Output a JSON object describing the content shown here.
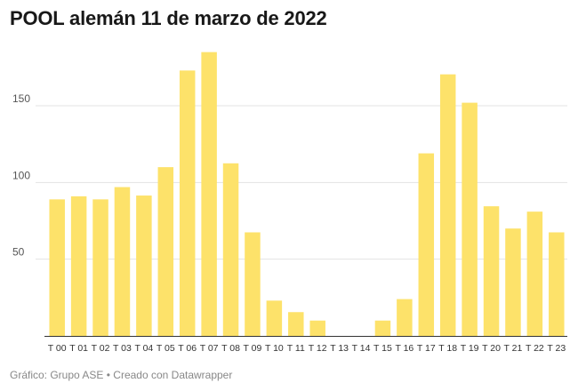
{
  "title": "POOL alemán 11 de marzo de 2022",
  "footer": {
    "source": "Gráfico: Grupo ASE",
    "separator": "•",
    "credit": "Creado con Datawrapper"
  },
  "colors": {
    "bar": "#fde26a",
    "grid": "#e3e3e3",
    "axis": "#333333"
  },
  "chart_data": {
    "type": "bar",
    "title": "POOL alemán 11 de marzo de 2022",
    "xlabel": "",
    "ylabel": "",
    "grid": true,
    "ylim": [
      0,
      190
    ],
    "yticks": [
      50,
      100,
      150
    ],
    "categories": [
      "T 00",
      "T 01",
      "T 02",
      "T 03",
      "T 04",
      "T 05",
      "T 06",
      "T 07",
      "T 08",
      "T 09",
      "T 10",
      "T 11",
      "T 12",
      "T 13",
      "T 14",
      "T 15",
      "T 16",
      "T 17",
      "T 18",
      "T 19",
      "T 20",
      "T 21",
      "T 22",
      "T 23"
    ],
    "values": [
      89,
      91,
      89,
      97,
      91.5,
      110,
      173,
      185,
      112.5,
      67.5,
      23,
      15.5,
      10,
      0,
      0,
      10,
      24,
      119,
      170.5,
      152,
      84.5,
      70,
      81,
      67.5
    ]
  }
}
